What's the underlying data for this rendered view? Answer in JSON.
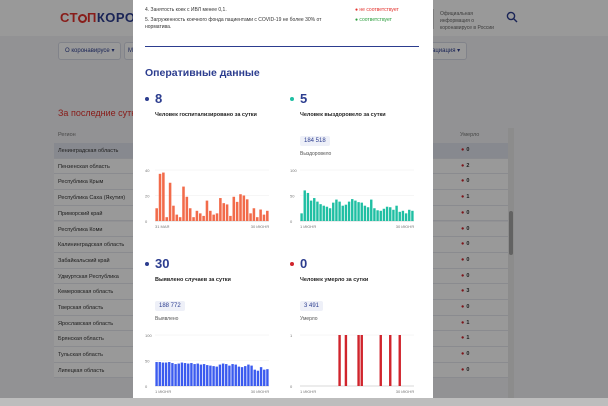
{
  "header": {
    "logo_part1": "СТ",
    "logo_part2": "П",
    "logo_part3": "КОРОНАВИ",
    "info_text": "Официальная информация о коронавирусе в России"
  },
  "nav": {
    "about_label": "О коронавирусе",
    "item2_label": "М",
    "item3_label": "ациация"
  },
  "section_title": "За последние сутки",
  "table": {
    "col_region": "Регион",
    "col_dead": "Умерло",
    "rows": [
      {
        "name": "Ленинградская область",
        "dead": "0",
        "hl": true
      },
      {
        "name": "Пензенская область",
        "dead": "2"
      },
      {
        "name": "Республика Крым",
        "dead": "0"
      },
      {
        "name": "Республика Саха (Якутия)",
        "dead": "1"
      },
      {
        "name": "Приморский край",
        "dead": "0"
      },
      {
        "name": "Республика Коми",
        "dead": "0"
      },
      {
        "name": "Калининградская область",
        "dead": "0"
      },
      {
        "name": "Забайкальский край",
        "dead": "0"
      },
      {
        "name": "Удмуртская Республика",
        "dead": "0"
      },
      {
        "name": "Кемеровская область",
        "dead": "3"
      },
      {
        "name": "Тверская область",
        "dead": "0"
      },
      {
        "name": "Ярославская область",
        "dead": "1"
      },
      {
        "name": "Брянская область",
        "dead": "1"
      },
      {
        "name": "Тульская область",
        "dead": "0"
      },
      {
        "name": "Липецкая область",
        "dead": "0"
      }
    ]
  },
  "modal": {
    "criteria": [
      {
        "text": "4. Занятость коек с ИВЛ менее 0,1.",
        "status": "не соответствует",
        "status_color": "#e3312c"
      },
      {
        "text": "5. Загруженность коечного фонда пациентами с COVID-19 не более 30% от норматива.",
        "status": "соответствует",
        "status_color": "#2a9d3c"
      }
    ],
    "title": "Оперативные данные",
    "stats": [
      {
        "number": "8",
        "desc": "Человек госпитализировано за сутки",
        "badge": "",
        "sub": "",
        "dot_color": "#2c3d8f",
        "bar_color": "#f26b4a"
      },
      {
        "number": "5",
        "desc": "Человек выздоровело за сутки",
        "badge": "184 518",
        "sub": "Выздоровело",
        "dot_color": "#1fbfa3",
        "bar_color": "#1fbfa3"
      },
      {
        "number": "30",
        "desc": "Выявлено случаев за сутки",
        "badge": "188 772",
        "sub": "Выявлено",
        "dot_color": "#2c3d8f",
        "bar_color": "#3b5bef"
      },
      {
        "number": "0",
        "desc": "Человек умерло за сутки",
        "badge": "3 491",
        "sub": "Умерло",
        "dot_color": "#d0242c",
        "bar_color": "#d0242c"
      }
    ]
  },
  "chart_data": [
    {
      "type": "bar",
      "x_start_label": "31 МАЯ",
      "x_end_label": "30 ИЮНЯ",
      "yticks": [
        "40",
        "20",
        "0"
      ],
      "ylim": [
        0,
        40
      ],
      "values": [
        10,
        37,
        38,
        3,
        30,
        12,
        5,
        3,
        27,
        19,
        10,
        3,
        8,
        6,
        4,
        16,
        8,
        5,
        6,
        18,
        14,
        13,
        4,
        19,
        15,
        21,
        20,
        17,
        6,
        10,
        3,
        9,
        5,
        8
      ]
    },
    {
      "type": "bar",
      "x_start_label": "1 ИЮНЯ",
      "x_end_label": "30 ИЮНЯ",
      "yticks": [
        "100",
        "50",
        "0"
      ],
      "ylim": [
        0,
        100
      ],
      "values": [
        15,
        60,
        55,
        40,
        45,
        38,
        33,
        30,
        28,
        25,
        36,
        42,
        38,
        30,
        32,
        38,
        43,
        40,
        37,
        36,
        30,
        27,
        42,
        25,
        21,
        20,
        24,
        28,
        27,
        22,
        30,
        18,
        20,
        15,
        22,
        20
      ]
    },
    {
      "type": "bar",
      "x_start_label": "1 ИЮНЯ",
      "x_end_label": "30 ИЮНЯ",
      "yticks": [
        "100",
        "50",
        "0"
      ],
      "ylim": [
        0,
        100
      ],
      "values": [
        47,
        47,
        46,
        46,
        47,
        45,
        43,
        44,
        46,
        45,
        44,
        45,
        43,
        44,
        42,
        43,
        41,
        40,
        39,
        38,
        42,
        44,
        43,
        40,
        43,
        42,
        38,
        37,
        39,
        42,
        40,
        32,
        30,
        37,
        32,
        33
      ]
    },
    {
      "type": "bar",
      "x_start_label": "1 ИЮНЯ",
      "x_end_label": "30 ИЮНЯ",
      "yticks": [
        "1",
        "0"
      ],
      "ylim": [
        0,
        1
      ],
      "values": [
        0,
        0,
        0,
        0,
        0,
        0,
        0,
        0,
        0,
        0,
        0,
        0,
        1,
        0,
        1,
        0,
        0,
        0,
        1,
        1,
        0,
        0,
        0,
        0,
        0,
        1,
        0,
        0,
        1,
        0,
        0,
        1,
        0,
        0,
        0,
        0
      ]
    }
  ]
}
